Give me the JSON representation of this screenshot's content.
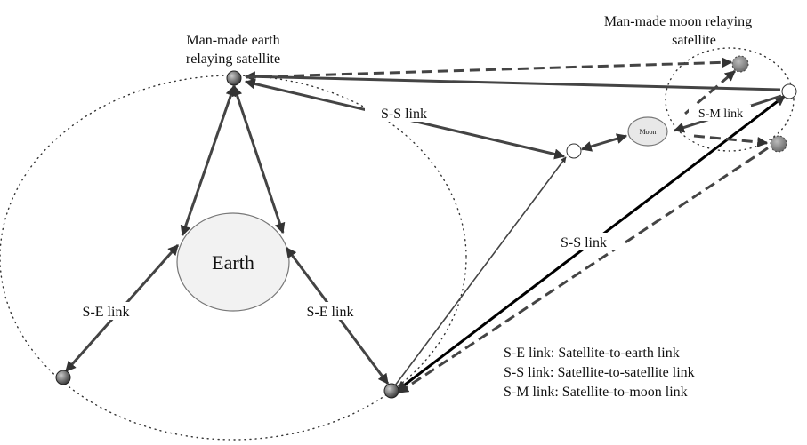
{
  "labels": {
    "earth_satellite": [
      "Man-made earth",
      "relaying satellite"
    ],
    "moon_satellite": [
      "Man-made moon relaying",
      "satellite"
    ],
    "earth": "Earth",
    "moon": "Moon",
    "links": [
      "S-S link",
      "S-M link",
      "S-S link",
      "S-E link",
      "S-E link"
    ]
  },
  "legend": [
    "S-E link: Satellite-to-earth link",
    "S-S link: Satellite-to-satellite link",
    "S-M link: Satellite-to-moon link"
  ]
}
